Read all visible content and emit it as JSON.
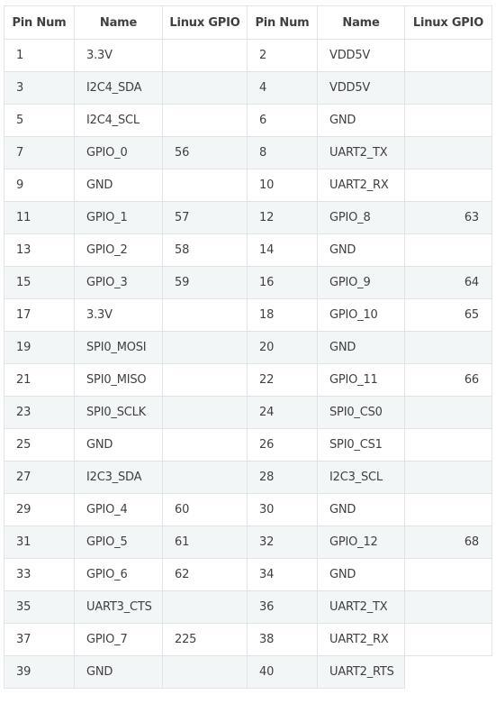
{
  "headers": [
    "Pin Num",
    "Name",
    "Linux GPIO",
    "Pin Num",
    "Name",
    "Linux GPIO"
  ],
  "rows": [
    [
      "1",
      "3.3V",
      "",
      "2",
      "VDD5V",
      ""
    ],
    [
      "3",
      "I2C4_SDA",
      "",
      "4",
      "VDD5V",
      ""
    ],
    [
      "5",
      "I2C4_SCL",
      "",
      "6",
      "GND",
      ""
    ],
    [
      "7",
      "GPIO_0",
      "56",
      "8",
      "UART2_TX",
      ""
    ],
    [
      "9",
      "GND",
      "",
      "10",
      "UART2_RX",
      ""
    ],
    [
      "11",
      "GPIO_1",
      "57",
      "12",
      "GPIO_8",
      "63"
    ],
    [
      "13",
      "GPIO_2",
      "58",
      "14",
      "GND",
      ""
    ],
    [
      "15",
      "GPIO_3",
      "59",
      "16",
      "GPIO_9",
      "64"
    ],
    [
      "17",
      "3.3V",
      "",
      "18",
      "GPIO_10",
      "65"
    ],
    [
      "19",
      "SPI0_MOSI",
      "",
      "20",
      "GND",
      ""
    ],
    [
      "21",
      "SPI0_MISO",
      "",
      "22",
      "GPIO_11",
      "66"
    ],
    [
      "23",
      "SPI0_SCLK",
      "",
      "24",
      "SPI0_CS0",
      ""
    ],
    [
      "25",
      "GND",
      "",
      "26",
      "SPI0_CS1",
      ""
    ],
    [
      "27",
      "I2C3_SDA",
      "",
      "28",
      "I2C3_SCL",
      ""
    ],
    [
      "29",
      "GPIO_4",
      "60",
      "30",
      "GND",
      ""
    ],
    [
      "31",
      "GPIO_5",
      "61",
      "32",
      "GPIO_12",
      "68"
    ],
    [
      "33",
      "GPIO_6",
      "62",
      "34",
      "GND",
      ""
    ],
    [
      "35",
      "UART3_CTS",
      "",
      "36",
      "UART2_TX",
      ""
    ],
    [
      "37",
      "GPIO_7",
      "225",
      "38",
      "UART2_RX",
      ""
    ],
    [
      "39",
      "GND",
      "",
      "40",
      "UART2_RTS",
      null
    ]
  ]
}
